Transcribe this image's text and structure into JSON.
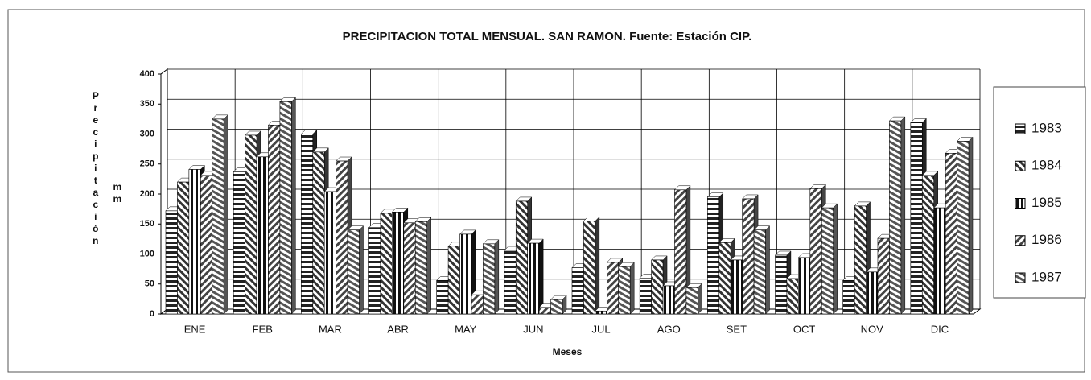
{
  "chart_data": {
    "type": "bar",
    "title": "PRECIPITACION TOTAL MENSUAL. SAN RAMON. Fuente: Estación CIP.",
    "x_label": "Meses",
    "y_label": "Precipitación",
    "y_unit": "mm",
    "categories": [
      "ENE",
      "FEB",
      "MAR",
      "ABR",
      "MAY",
      "JUN",
      "JUL",
      "AGO",
      "SET",
      "OCT",
      "NOV",
      "DIC"
    ],
    "series": [
      {
        "name": "1983",
        "color": "#222222",
        "values": [
          172,
          237,
          300,
          144,
          56,
          106,
          77,
          60,
          195,
          98,
          56,
          319
        ]
      },
      {
        "name": "1984",
        "color": "#333333",
        "values": [
          220,
          298,
          270,
          168,
          113,
          188,
          155,
          90,
          119,
          59,
          180,
          231
        ]
      },
      {
        "name": "1985",
        "color": "#111111",
        "values": [
          241,
          262,
          204,
          170,
          133,
          118,
          5,
          47,
          90,
          94,
          70,
          177
        ]
      },
      {
        "name": "1986",
        "color": "#444444",
        "values": [
          231,
          315,
          255,
          152,
          32,
          11,
          86,
          207,
          192,
          209,
          126,
          268
        ]
      },
      {
        "name": "1987",
        "color": "#555555",
        "values": [
          325,
          354,
          140,
          154,
          117,
          24,
          79,
          44,
          140,
          177,
          322,
          288
        ]
      }
    ],
    "ylim": [
      0,
      400
    ],
    "yticks": [
      0,
      50,
      100,
      150,
      200,
      250,
      300,
      350,
      400
    ],
    "grid": true,
    "legend": "right"
  }
}
